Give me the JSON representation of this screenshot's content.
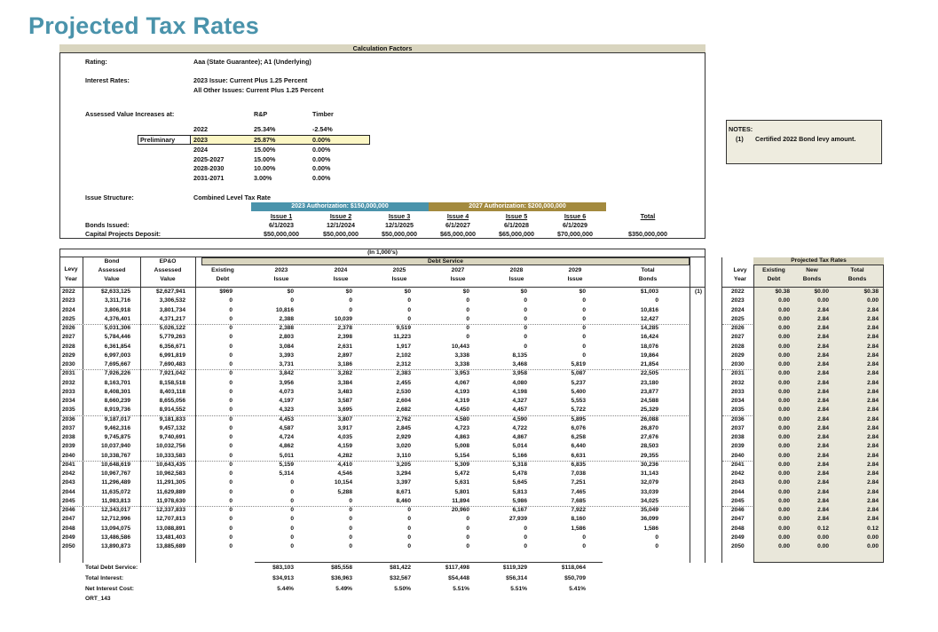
{
  "title": "Projected Tax Rates",
  "colors": {
    "title": "#4a93ab",
    "header_band": "#d9d5bf",
    "auth_2023": "#4a93ab",
    "auth_2027": "#a38a3e",
    "preliminary_fill": "#fbf6c4",
    "tax_panel": "#e9e7da"
  },
  "calc": {
    "header": "Calculation Factors",
    "rating_label": "Rating:",
    "rating_value": "Aaa (State Guarantee); A1 (Underlying)",
    "interest_label": "Interest Rates:",
    "interest_line1": "2023 Issue:  Current Plus 1.25 Percent",
    "interest_line2": "All Other Issues:  Current Plus 1.25 Percent",
    "av_label": "Assessed Value Increases at:",
    "av_col1": "R&P",
    "av_col2": "Timber",
    "preliminary_label": "Preliminary",
    "av_rows": [
      {
        "year": "2022",
        "rp": "25.34%",
        "timber": "-2.54%"
      },
      {
        "year": "2023",
        "rp": "25.87%",
        "timber": "0.00%"
      },
      {
        "year": "2024",
        "rp": "15.00%",
        "timber": "0.00%"
      },
      {
        "year": "2025-2027",
        "rp": "15.00%",
        "timber": "0.00%"
      },
      {
        "year": "2028-2030",
        "rp": "10.00%",
        "timber": "0.00%"
      },
      {
        "year": "2031-2071",
        "rp": "3.00%",
        "timber": "0.00%"
      }
    ],
    "structure_label": "Issue Structure:",
    "structure_value": "Combined Level Tax Rate",
    "auth_2023": "2023 Authorization:  $150,000,000",
    "auth_2027": "2027 Authorization:  $200,000,000",
    "issues": [
      {
        "name": "Issue 1",
        "date": "6/1/2023",
        "deposit": "$50,000,000"
      },
      {
        "name": "Issue 2",
        "date": "12/1/2024",
        "deposit": "$50,000,000"
      },
      {
        "name": "Issue 3",
        "date": "12/1/2025",
        "deposit": "$50,000,000"
      },
      {
        "name": "Issue 4",
        "date": "6/1/2027",
        "deposit": "$65,000,000"
      },
      {
        "name": "Issue 5",
        "date": "6/1/2028",
        "deposit": "$65,000,000"
      },
      {
        "name": "Issue 6",
        "date": "6/1/2029",
        "deposit": "$70,000,000"
      }
    ],
    "total_label": "Total",
    "total_deposit": "$350,000,000",
    "bonds_issued_label": "Bonds Issued:",
    "deposit_label": "Capital Projects Deposit:"
  },
  "notes": {
    "title": "NOTES:",
    "num": "(1)",
    "text": "Certified 2022 Bond levy amount."
  },
  "table": {
    "units": "(In 1,000's)",
    "ds_header": "Debt Service",
    "headers": {
      "levy1": "Levy",
      "levy2": "Year",
      "bond1": "Bond",
      "bond2": "Assessed",
      "bond3": "Value",
      "epo1": "EP&O",
      "epo2": "Assessed",
      "epo3": "Value",
      "ex1": "Existing",
      "ex2": "Debt",
      "i1a": "2023",
      "i1b": "Issue",
      "i2a": "2024",
      "i2b": "Issue",
      "i3a": "2025",
      "i3b": "Issue",
      "i4a": "2027",
      "i4b": "Issue",
      "i5a": "2028",
      "i5b": "Issue",
      "i6a": "2029",
      "i6b": "Issue",
      "tot1": "Total",
      "tot2": "Bonds"
    },
    "footnote_ref": "(1)",
    "rows": [
      [
        "2022",
        "$2,633,125",
        "$2,627,941",
        "$969",
        "$0",
        "$0",
        "$0",
        "$0",
        "$0",
        "$0",
        "$1,003"
      ],
      [
        "2023",
        "3,311,716",
        "3,306,532",
        "0",
        "0",
        "0",
        "0",
        "0",
        "0",
        "0",
        "0"
      ],
      [
        "2024",
        "3,806,918",
        "3,801,734",
        "0",
        "10,816",
        "0",
        "0",
        "0",
        "0",
        "0",
        "10,816"
      ],
      [
        "2025",
        "4,376,401",
        "4,371,217",
        "0",
        "2,388",
        "10,039",
        "0",
        "0",
        "0",
        "0",
        "12,427"
      ],
      [
        "2026",
        "5,031,306",
        "5,026,122",
        "0",
        "2,388",
        "2,378",
        "9,519",
        "0",
        "0",
        "0",
        "14,285"
      ],
      [
        "2027",
        "5,784,446",
        "5,779,263",
        "0",
        "2,803",
        "2,398",
        "11,223",
        "0",
        "0",
        "0",
        "16,424"
      ],
      [
        "2028",
        "6,361,854",
        "6,356,671",
        "0",
        "3,084",
        "2,631",
        "1,917",
        "10,443",
        "0",
        "0",
        "18,076"
      ],
      [
        "2029",
        "6,997,003",
        "6,991,819",
        "0",
        "3,393",
        "2,897",
        "2,102",
        "3,338",
        "8,135",
        "0",
        "19,864"
      ],
      [
        "2030",
        "7,695,667",
        "7,690,483",
        "0",
        "3,731",
        "3,186",
        "2,312",
        "3,338",
        "3,468",
        "5,819",
        "21,854"
      ],
      [
        "2031",
        "7,926,226",
        "7,921,042",
        "0",
        "3,842",
        "3,282",
        "2,383",
        "3,953",
        "3,958",
        "5,087",
        "22,505"
      ],
      [
        "2032",
        "8,163,701",
        "8,158,518",
        "0",
        "3,956",
        "3,384",
        "2,455",
        "4,067",
        "4,080",
        "5,237",
        "23,180"
      ],
      [
        "2033",
        "8,408,301",
        "8,403,118",
        "0",
        "4,073",
        "3,483",
        "2,530",
        "4,193",
        "4,198",
        "5,400",
        "23,877"
      ],
      [
        "2034",
        "8,660,239",
        "8,655,056",
        "0",
        "4,197",
        "3,587",
        "2,604",
        "4,319",
        "4,327",
        "5,553",
        "24,588"
      ],
      [
        "2035",
        "8,919,736",
        "8,914,552",
        "0",
        "4,323",
        "3,695",
        "2,682",
        "4,450",
        "4,457",
        "5,722",
        "25,329"
      ],
      [
        "2036",
        "9,187,017",
        "9,181,833",
        "0",
        "4,453",
        "3,807",
        "2,762",
        "4,580",
        "4,590",
        "5,895",
        "26,088"
      ],
      [
        "2037",
        "9,462,316",
        "9,457,132",
        "0",
        "4,587",
        "3,917",
        "2,845",
        "4,723",
        "4,722",
        "6,076",
        "26,870"
      ],
      [
        "2038",
        "9,745,875",
        "9,740,691",
        "0",
        "4,724",
        "4,035",
        "2,929",
        "4,863",
        "4,867",
        "6,258",
        "27,676"
      ],
      [
        "2039",
        "10,037,940",
        "10,032,756",
        "0",
        "4,862",
        "4,159",
        "3,020",
        "5,008",
        "5,014",
        "6,440",
        "28,503"
      ],
      [
        "2040",
        "10,338,767",
        "10,333,583",
        "0",
        "5,011",
        "4,282",
        "3,110",
        "5,154",
        "5,166",
        "6,631",
        "29,355"
      ],
      [
        "2041",
        "10,648,619",
        "10,643,435",
        "0",
        "5,159",
        "4,410",
        "3,205",
        "5,309",
        "5,318",
        "6,835",
        "30,236"
      ],
      [
        "2042",
        "10,967,767",
        "10,962,583",
        "0",
        "5,314",
        "4,546",
        "3,294",
        "5,472",
        "5,478",
        "7,038",
        "31,143"
      ],
      [
        "2043",
        "11,296,489",
        "11,291,305",
        "0",
        "0",
        "10,154",
        "3,397",
        "5,631",
        "5,645",
        "7,251",
        "32,079"
      ],
      [
        "2044",
        "11,635,072",
        "11,629,889",
        "0",
        "0",
        "5,288",
        "8,671",
        "5,801",
        "5,813",
        "7,465",
        "33,039"
      ],
      [
        "2045",
        "11,983,813",
        "11,978,630",
        "0",
        "0",
        "0",
        "8,460",
        "11,894",
        "5,986",
        "7,685",
        "34,025"
      ],
      [
        "2046",
        "12,343,017",
        "12,337,833",
        "0",
        "0",
        "0",
        "0",
        "20,960",
        "6,167",
        "7,922",
        "35,049"
      ],
      [
        "2047",
        "12,712,996",
        "12,707,813",
        "0",
        "0",
        "0",
        "0",
        "0",
        "27,939",
        "8,160",
        "36,099"
      ],
      [
        "2048",
        "13,094,075",
        "13,088,891",
        "0",
        "0",
        "0",
        "0",
        "0",
        "0",
        "1,586",
        "1,586"
      ],
      [
        "2049",
        "13,486,586",
        "13,481,403",
        "0",
        "0",
        "0",
        "0",
        "0",
        "0",
        "0",
        "0"
      ],
      [
        "2050",
        "13,890,873",
        "13,885,689",
        "0",
        "0",
        "0",
        "0",
        "0",
        "0",
        "0",
        "0"
      ]
    ],
    "summary": [
      {
        "label": "Total Debt Service:",
        "values": [
          "$83,103",
          "$85,558",
          "$81,422",
          "$117,498",
          "$119,329",
          "$118,064"
        ]
      },
      {
        "label": "Total Interest:",
        "values": [
          "$34,913",
          "$36,963",
          "$32,567",
          "$54,448",
          "$56,314",
          "$50,709"
        ]
      },
      {
        "label": "Net Interest Cost:",
        "values": [
          "5.44%",
          "5.49%",
          "5.50%",
          "5.51%",
          "5.51%",
          "5.41%"
        ]
      }
    ],
    "code": "ORT_143"
  },
  "rates": {
    "header": "Projected Tax Rates",
    "headers": {
      "l1": "Levy",
      "l2": "Year",
      "e1": "Existing",
      "e2": "Debt",
      "n1": "New",
      "n2": "Bonds",
      "t1": "Total",
      "t2": "Bonds"
    },
    "rows": [
      [
        "2022",
        "$0.38",
        "$0.00",
        "$0.38"
      ],
      [
        "2023",
        "0.00",
        "0.00",
        "0.00"
      ],
      [
        "2024",
        "0.00",
        "2.84",
        "2.84"
      ],
      [
        "2025",
        "0.00",
        "2.84",
        "2.84"
      ],
      [
        "2026",
        "0.00",
        "2.84",
        "2.84"
      ],
      [
        "2027",
        "0.00",
        "2.84",
        "2.84"
      ],
      [
        "2028",
        "0.00",
        "2.84",
        "2.84"
      ],
      [
        "2029",
        "0.00",
        "2.84",
        "2.84"
      ],
      [
        "2030",
        "0.00",
        "2.84",
        "2.84"
      ],
      [
        "2031",
        "0.00",
        "2.84",
        "2.84"
      ],
      [
        "2032",
        "0.00",
        "2.84",
        "2.84"
      ],
      [
        "2033",
        "0.00",
        "2.84",
        "2.84"
      ],
      [
        "2034",
        "0.00",
        "2.84",
        "2.84"
      ],
      [
        "2035",
        "0.00",
        "2.84",
        "2.84"
      ],
      [
        "2036",
        "0.00",
        "2.84",
        "2.84"
      ],
      [
        "2037",
        "0.00",
        "2.84",
        "2.84"
      ],
      [
        "2038",
        "0.00",
        "2.84",
        "2.84"
      ],
      [
        "2039",
        "0.00",
        "2.84",
        "2.84"
      ],
      [
        "2040",
        "0.00",
        "2.84",
        "2.84"
      ],
      [
        "2041",
        "0.00",
        "2.84",
        "2.84"
      ],
      [
        "2042",
        "0.00",
        "2.84",
        "2.84"
      ],
      [
        "2043",
        "0.00",
        "2.84",
        "2.84"
      ],
      [
        "2044",
        "0.00",
        "2.84",
        "2.84"
      ],
      [
        "2045",
        "0.00",
        "2.84",
        "2.84"
      ],
      [
        "2046",
        "0.00",
        "2.84",
        "2.84"
      ],
      [
        "2047",
        "0.00",
        "2.84",
        "2.84"
      ],
      [
        "2048",
        "0.00",
        "0.12",
        "0.12"
      ],
      [
        "2049",
        "0.00",
        "0.00",
        "0.00"
      ],
      [
        "2050",
        "0.00",
        "0.00",
        "0.00"
      ]
    ]
  }
}
